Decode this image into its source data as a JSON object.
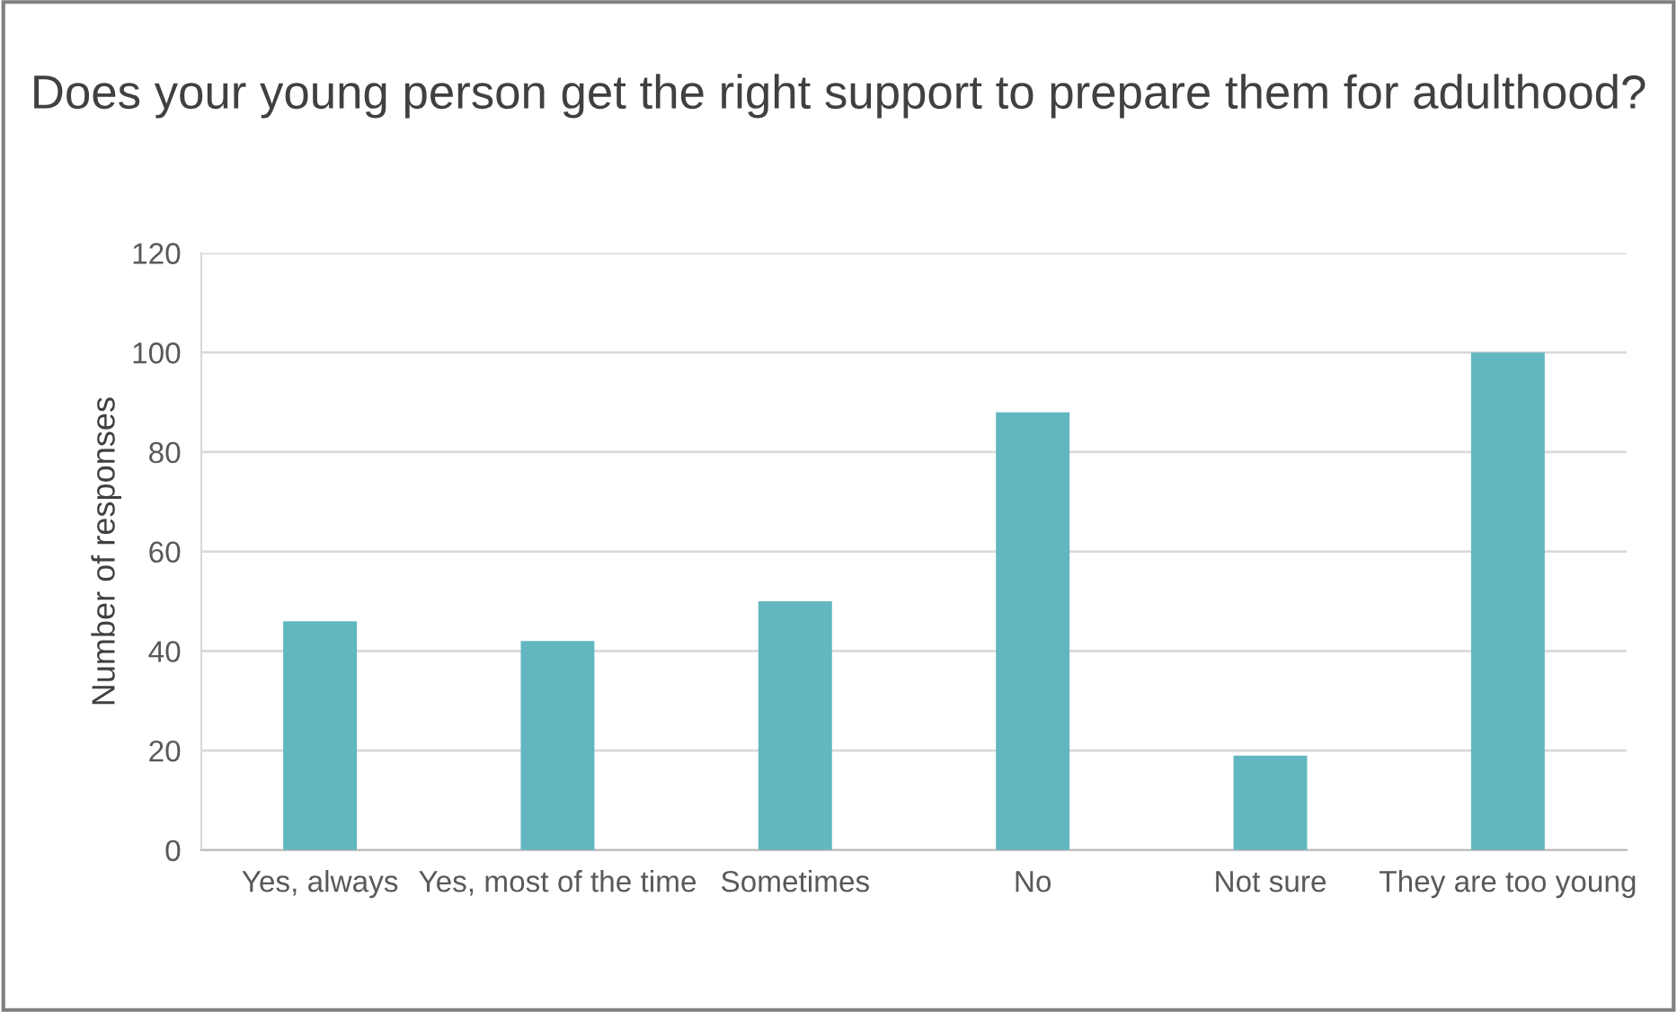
{
  "chart_data": {
    "type": "bar",
    "title": "Does your young person get the right support to prepare them for adulthood?",
    "ylabel": "Number of responses",
    "categories": [
      "Yes, always",
      "Yes, most of the time",
      "Sometimes",
      "No",
      "Not sure",
      "They are too young"
    ],
    "values": [
      46,
      42,
      50,
      88,
      19,
      100
    ],
    "color": "#62b6bf",
    "ylim": [
      0,
      120
    ],
    "yticks": [
      0,
      20,
      40,
      60,
      80,
      100,
      120
    ],
    "grid": "y",
    "legend": false
  }
}
